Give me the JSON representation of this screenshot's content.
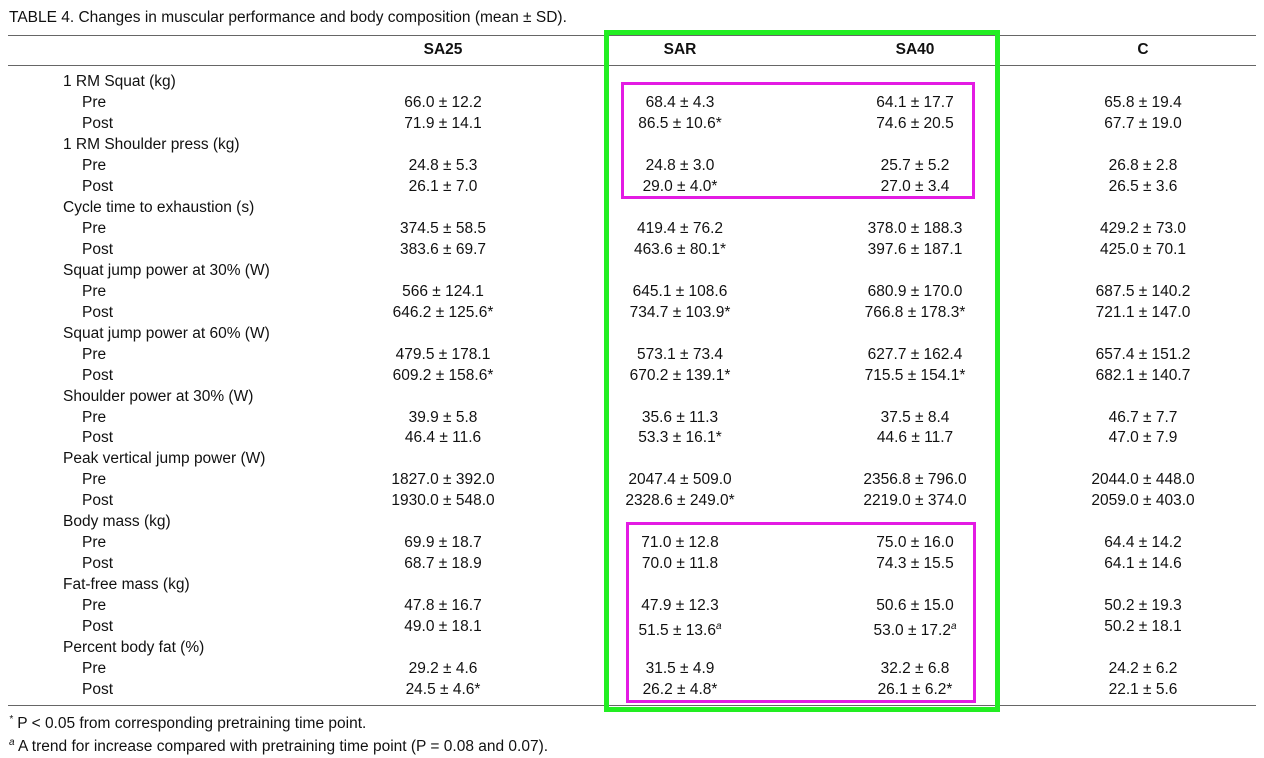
{
  "title": "TABLE 4. Changes in muscular performance and body composition (mean ± SD).",
  "columns": [
    "SA25",
    "SAR",
    "SA40",
    "C"
  ],
  "groups": [
    {
      "label": "1 RM Squat (kg)",
      "rows": [
        {
          "label": "Pre",
          "cells": [
            "66.0 ± 12.2",
            "68.4 ± 4.3",
            "64.1 ± 17.7",
            "65.8 ± 19.4"
          ]
        },
        {
          "label": "Post",
          "cells": [
            "71.9 ± 14.1",
            "86.5 ± 10.6*",
            "74.6 ± 20.5",
            "67.7 ± 19.0"
          ]
        }
      ]
    },
    {
      "label": "1 RM Shoulder press (kg)",
      "rows": [
        {
          "label": "Pre",
          "cells": [
            "24.8 ± 5.3",
            "24.8 ± 3.0",
            "25.7 ± 5.2",
            "26.8 ± 2.8"
          ]
        },
        {
          "label": "Post",
          "cells": [
            "26.1 ± 7.0",
            "29.0 ± 4.0*",
            "27.0 ± 3.4",
            "26.5 ± 3.6"
          ]
        }
      ]
    },
    {
      "label": "Cycle time to exhaustion (s)",
      "rows": [
        {
          "label": "Pre",
          "cells": [
            "374.5 ± 58.5",
            "419.4 ± 76.2",
            "378.0 ± 188.3",
            "429.2 ± 73.0"
          ]
        },
        {
          "label": "Post",
          "cells": [
            "383.6 ± 69.7",
            "463.6 ± 80.1*",
            "397.6 ± 187.1",
            "425.0 ± 70.1"
          ]
        }
      ]
    },
    {
      "label": "Squat jump power at 30% (W)",
      "rows": [
        {
          "label": "Pre",
          "cells": [
            "566 ± 124.1",
            "645.1 ± 108.6",
            "680.9 ± 170.0",
            "687.5 ± 140.2"
          ]
        },
        {
          "label": "Post",
          "cells": [
            "646.2 ± 125.6*",
            "734.7 ± 103.9*",
            "766.8 ± 178.3*",
            "721.1 ± 147.0"
          ]
        }
      ]
    },
    {
      "label": "Squat jump power at 60% (W)",
      "rows": [
        {
          "label": "Pre",
          "cells": [
            "479.5 ± 178.1",
            "573.1 ± 73.4",
            "627.7 ± 162.4",
            "657.4 ± 151.2"
          ]
        },
        {
          "label": "Post",
          "cells": [
            "609.2 ± 158.6*",
            "670.2 ± 139.1*",
            "715.5 ± 154.1*",
            "682.1 ± 140.7"
          ]
        }
      ]
    },
    {
      "label": "Shoulder power at 30% (W)",
      "rows": [
        {
          "label": "Pre",
          "cells": [
            "39.9 ± 5.8",
            "35.6 ± 11.3",
            "37.5 ± 8.4",
            "46.7 ± 7.7"
          ]
        },
        {
          "label": "Post",
          "cells": [
            "46.4 ± 11.6",
            "53.3 ± 16.1*",
            "44.6 ± 11.7",
            "47.0 ± 7.9"
          ]
        }
      ]
    },
    {
      "label": "Peak vertical jump power (W)",
      "rows": [
        {
          "label": "Pre",
          "cells": [
            "1827.0 ± 392.0",
            "2047.4 ± 509.0",
            "2356.8 ± 796.0",
            "2044.0 ± 448.0"
          ]
        },
        {
          "label": "Post",
          "cells": [
            "1930.0 ± 548.0",
            "2328.6 ± 249.0*",
            "2219.0 ± 374.0",
            "2059.0 ± 403.0"
          ]
        }
      ]
    },
    {
      "label": "Body mass (kg)",
      "rows": [
        {
          "label": "Pre",
          "cells": [
            "69.9 ± 18.7",
            "71.0 ± 12.8",
            "75.0 ± 16.0",
            "64.4 ± 14.2"
          ]
        },
        {
          "label": "Post",
          "cells": [
            "68.7 ± 18.9",
            "70.0 ± 11.8",
            "74.3 ± 15.5",
            "64.1 ± 14.6"
          ]
        }
      ]
    },
    {
      "label": "Fat-free mass (kg)",
      "rows": [
        {
          "label": "Pre",
          "cells": [
            "47.8 ± 16.7",
            "47.9 ± 12.3",
            "50.6 ± 15.0",
            "50.2 ± 19.3"
          ]
        },
        {
          "label": "Post",
          "cells": [
            "49.0 ± 18.1",
            {
              "text": "51.5 ± 13.6",
              "sup": "a"
            },
            {
              "text": "53.0 ± 17.2",
              "sup": "a"
            },
            "50.2 ± 18.1"
          ]
        }
      ]
    },
    {
      "label": "Percent body fat (%)",
      "rows": [
        {
          "label": "Pre",
          "cells": [
            "29.2 ± 4.6",
            "31.5 ± 4.9",
            "32.2 ± 6.8",
            "24.2 ± 6.2"
          ]
        },
        {
          "label": "Post",
          "cells": [
            "24.5 ± 4.6*",
            "26.2 ± 4.8*",
            "26.1 ± 6.2*",
            "22.1 ± 5.6"
          ]
        }
      ]
    }
  ],
  "footnotes": [
    {
      "mark": "*",
      "text": "P < 0.05 from corresponding pretraining time point."
    },
    {
      "mark": "a",
      "text": "A trend for increase compared with pretraining time point (P = 0.08 and 0.07)."
    }
  ]
}
